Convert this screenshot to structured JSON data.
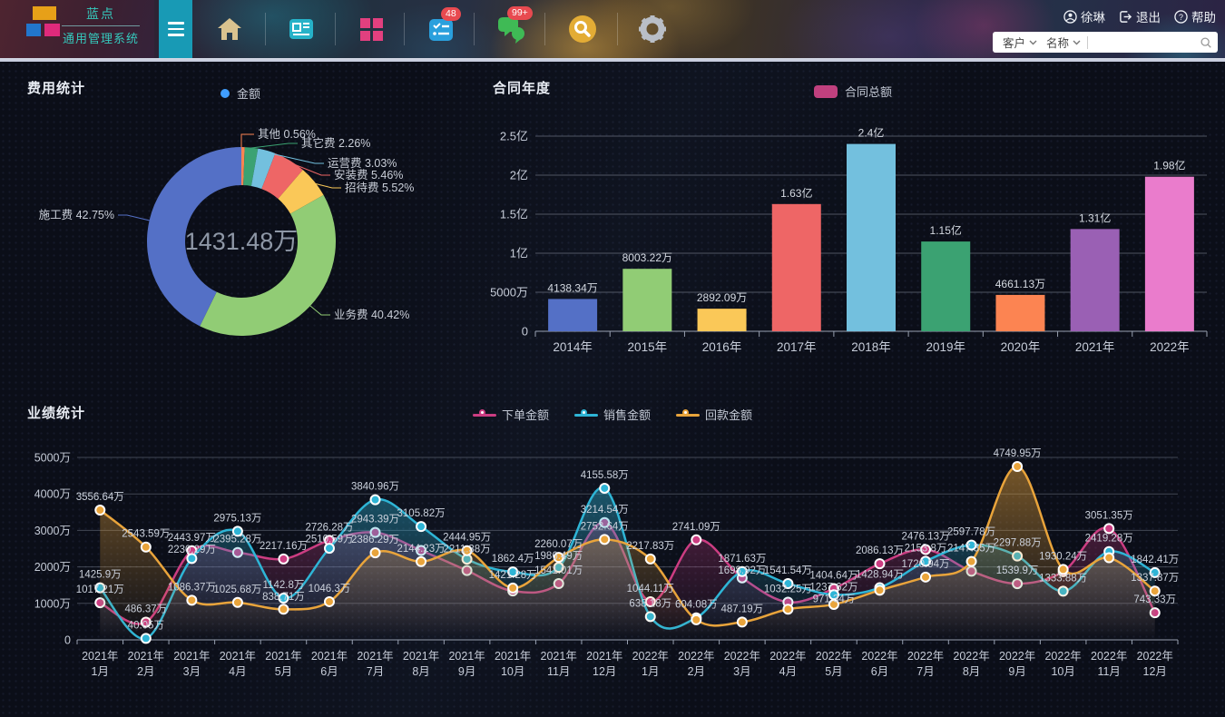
{
  "header": {
    "brand": {
      "title": "蓝点",
      "subtitle": "通用管理系统"
    },
    "badges": {
      "tasks": "48",
      "messages": "99+"
    },
    "user": {
      "name": "徐琳",
      "logout": "退出",
      "help": "帮助"
    },
    "searchbar": {
      "filter_customer": "客户",
      "filter_name": "名称",
      "input_value": ""
    }
  },
  "panels": {
    "expense": {
      "title": "费用统计",
      "legend_label": "金额"
    },
    "contract": {
      "title": "合同年度",
      "legend_label": "合同总额"
    },
    "performance": {
      "title": "业绩统计"
    }
  },
  "chart_data": [
    {
      "id": "expense-donut",
      "type": "pie",
      "title": "费用统计",
      "series_name": "金额",
      "legend_color": "#409eff",
      "center_label": "1431.48万",
      "segments_clockwise_from_top": [
        {
          "name": "其他",
          "pct": 0.56,
          "color": "#fc8452",
          "label": "其他 0.56%"
        },
        {
          "name": "其它费",
          "pct": 2.26,
          "color": "#3ba272",
          "label": "其它费 2.26%"
        },
        {
          "name": "运营费",
          "pct": 3.03,
          "color": "#73c0de",
          "label": "运营费 3.03%"
        },
        {
          "name": "安装费",
          "pct": 5.46,
          "color": "#ee6666",
          "label": "安装费 5.46%"
        },
        {
          "name": "招待费",
          "pct": 5.52,
          "color": "#fac858",
          "label": "招待费 5.52%"
        },
        {
          "name": "业务费",
          "pct": 40.42,
          "color": "#91cc75",
          "label": "业务费 40.42%"
        },
        {
          "name": "施工费",
          "pct": 42.75,
          "color": "#5470c6",
          "label": "施工费 42.75%"
        }
      ]
    },
    {
      "id": "contract-bars",
      "type": "bar",
      "title": "合同年度",
      "series_name": "合同总额",
      "legend_color": "#c0407e",
      "categories": [
        "2014年",
        "2015年",
        "2016年",
        "2017年",
        "2018年",
        "2019年",
        "2020年",
        "2021年",
        "2022年"
      ],
      "values_wan": [
        4138.34,
        8003.22,
        2892.09,
        16300,
        24000,
        11500,
        4661.13,
        13100,
        19800
      ],
      "bar_labels": [
        "4138.34万",
        "8003.22万",
        "2892.09万",
        "1.63亿",
        "2.4亿",
        "1.15亿",
        "4661.13万",
        "1.31亿",
        "1.98亿"
      ],
      "bar_colors": [
        "#5470c6",
        "#91cc75",
        "#fac858",
        "#ee6666",
        "#73c0de",
        "#3ba272",
        "#fc8452",
        "#9a60b4",
        "#ea7ccc"
      ],
      "ylim_wan": [
        0,
        25000
      ],
      "ytick_values": [
        25000,
        20000,
        15000,
        10000,
        5000,
        0
      ],
      "ytick_labels": [
        "2.5亿",
        "2亿",
        "1.5亿",
        "1亿",
        "5000万",
        "0"
      ],
      "grid": true,
      "legend_position": "top-center"
    },
    {
      "id": "performance-lines",
      "type": "line",
      "title": "业绩统计",
      "categories": [
        [
          "2021年",
          "1月"
        ],
        [
          "2021年",
          "2月"
        ],
        [
          "2021年",
          "3月"
        ],
        [
          "2021年",
          "4月"
        ],
        [
          "2021年",
          "5月"
        ],
        [
          "2021年",
          "6月"
        ],
        [
          "2021年",
          "7月"
        ],
        [
          "2021年",
          "8月"
        ],
        [
          "2021年",
          "9月"
        ],
        [
          "2021年",
          "10月"
        ],
        [
          "2021年",
          "11月"
        ],
        [
          "2021年",
          "12月"
        ],
        [
          "2022年",
          "1月"
        ],
        [
          "2022年",
          "2月"
        ],
        [
          "2022年",
          "3月"
        ],
        [
          "2022年",
          "4月"
        ],
        [
          "2022年",
          "5月"
        ],
        [
          "2022年",
          "6月"
        ],
        [
          "2022年",
          "7月"
        ],
        [
          "2022年",
          "8月"
        ],
        [
          "2022年",
          "9月"
        ],
        [
          "2022年",
          "10月"
        ],
        [
          "2022年",
          "11月"
        ],
        [
          "2022年",
          "12月"
        ]
      ],
      "ylim_wan": [
        0,
        5000
      ],
      "ytick_values": [
        5000,
        4000,
        3000,
        2000,
        1000,
        0
      ],
      "ytick_labels": [
        "5000万",
        "4000万",
        "3000万",
        "2000万",
        "1000万",
        "0"
      ],
      "grid": true,
      "legend_position": "top-center",
      "series": [
        {
          "name": "下单金额",
          "color": "#cc3d82",
          "values": [
            1017.21,
            486.37,
            2443.97,
            2395.28,
            2217.16,
            2726.28,
            2943.39,
            2450,
            1900,
            1340,
            1541.01,
            3214.54,
            1044.11,
            2741.09,
            1698.92,
            1032.25,
            1404.64,
            2086.13,
            2476.13,
            1880,
            1539.9,
            1870,
            3051.35,
            743.33
          ],
          "point_labels": [
            "1017.21万",
            "486.37万",
            "2443.97万",
            "2395.28万",
            "2217.16万",
            "2726.28万",
            "2943.39万",
            "",
            "",
            "",
            "1541.01万",
            "3214.54万",
            "1044.11万",
            "2741.09万",
            "1698.92万",
            "1032.25万",
            "1404.64万",
            "2086.13万",
            "2476.13万",
            "",
            "1539.9万",
            "",
            "3051.35万",
            "743.33万"
          ]
        },
        {
          "name": "销售金额",
          "color": "#2eb5d6",
          "values": [
            1425.9,
            40.05,
            2230.29,
            2975.13,
            1142.8,
            2510.59,
            3840.96,
            3105.82,
            2211.38,
            1862.4,
            1986.49,
            4155.58,
            638.18,
            604.08,
            1871.63,
            1541.54,
            1237.62,
            1428.94,
            2153.8,
            2597.78,
            2297.88,
            1333.88,
            2419.28,
            1842.41
          ],
          "point_labels": [
            "1425.9万",
            "40.05万",
            "2230.29万",
            "2975.13万",
            "1142.8万",
            "2510.59万",
            "3840.96万",
            "3105.82万",
            "2211.38万",
            "1862.4万",
            "1986.49万",
            "4155.58万",
            "638.18万",
            "604.08万",
            "1871.63万",
            "1541.54万",
            "1237.62万",
            "1428.94万",
            "2153.8万",
            "2597.78万",
            "2297.88万",
            "1333.88万",
            "2419.28万",
            "1842.41万"
          ]
        },
        {
          "name": "回款金额",
          "color": "#e9a43b",
          "values": [
            3556.64,
            2543.59,
            1086.37,
            1025.68,
            838.71,
            1046.3,
            2386.29,
            2144.23,
            2444.95,
            1421.28,
            2260.07,
            2752.64,
            2217.83,
            550,
            487.19,
            840,
            971.34,
            1360,
            1720.94,
            2147.35,
            4749.95,
            1930.24,
            2250,
            1337.87
          ],
          "point_labels": [
            "3556.64万",
            "2543.59万",
            "1086.37万",
            "1025.68万",
            "838.71万",
            "1046.3万",
            "2386.29万",
            "2144.23万",
            "2444.95万",
            "1421.28万",
            "2260.07万",
            "2752.64万",
            "2217.83万",
            "",
            "487.19万",
            "",
            "971.34万",
            "",
            "1720.94万",
            "2147.35万",
            "4749.95万",
            "1930.24万",
            "",
            "1337.87万"
          ]
        }
      ]
    }
  ]
}
